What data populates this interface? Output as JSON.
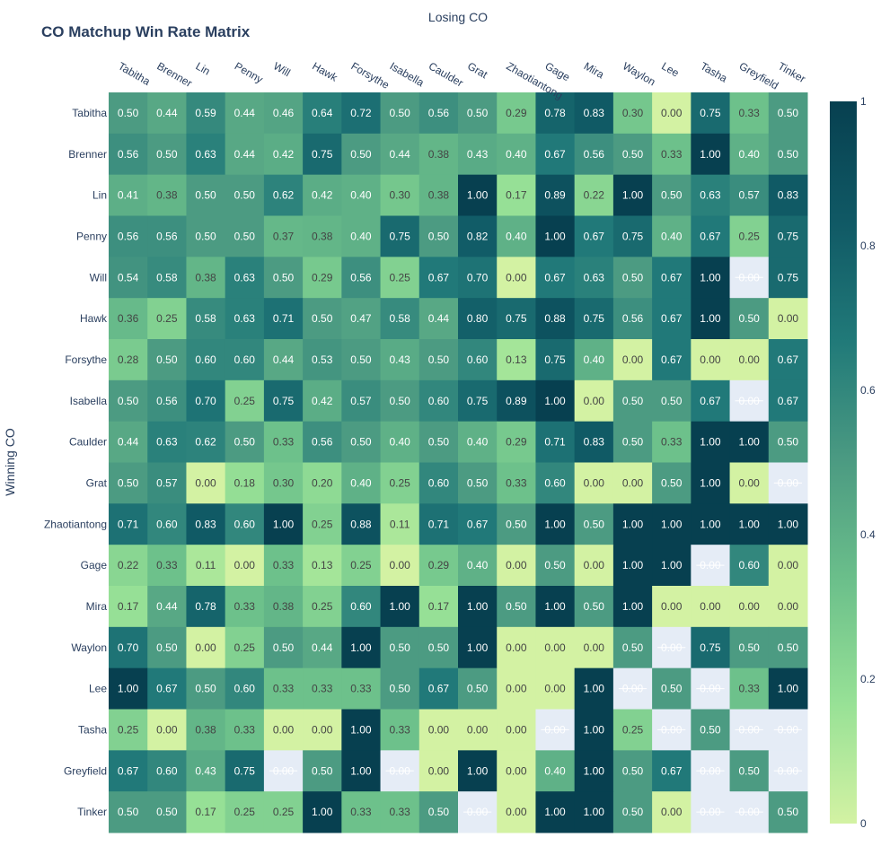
{
  "chart_data": {
    "type": "heatmap",
    "title": "CO Matchup Win Rate Matrix",
    "xlabel": "Losing CO",
    "ylabel": "Winning CO",
    "x": [
      "Tabitha",
      "Brenner",
      "Lin",
      "Penny",
      "Will",
      "Hawk",
      "Forsythe",
      "Isabella",
      "Caulder",
      "Grat",
      "Zhaotiantong",
      "Gage",
      "Mira",
      "Waylon",
      "Lee",
      "Tasha",
      "Greyfield",
      "Tinker"
    ],
    "y": [
      "Tabitha",
      "Brenner",
      "Lin",
      "Penny",
      "Will",
      "Hawk",
      "Forsythe",
      "Isabella",
      "Caulder",
      "Grat",
      "Zhaotiantong",
      "Gage",
      "Mira",
      "Waylon",
      "Lee",
      "Tasha",
      "Greyfield",
      "Tinker"
    ],
    "z": [
      [
        0.5,
        0.44,
        0.59,
        0.44,
        0.46,
        0.64,
        0.72,
        0.5,
        0.56,
        0.5,
        0.29,
        0.78,
        0.83,
        0.3,
        0.0,
        0.75,
        0.33,
        0.5
      ],
      [
        0.56,
        0.5,
        0.63,
        0.44,
        0.42,
        0.75,
        0.5,
        0.44,
        0.38,
        0.43,
        0.4,
        0.67,
        0.56,
        0.5,
        0.33,
        1.0,
        0.4,
        0.5
      ],
      [
        0.41,
        0.38,
        0.5,
        0.5,
        0.62,
        0.42,
        0.4,
        0.3,
        0.38,
        1.0,
        0.17,
        0.89,
        0.22,
        1.0,
        0.5,
        0.63,
        0.57,
        0.83
      ],
      [
        0.56,
        0.56,
        0.5,
        0.5,
        0.37,
        0.38,
        0.4,
        0.75,
        0.5,
        0.82,
        0.4,
        1.0,
        0.67,
        0.75,
        0.4,
        0.67,
        0.25,
        0.75
      ],
      [
        0.54,
        0.58,
        0.38,
        0.63,
        0.5,
        0.29,
        0.56,
        0.25,
        0.67,
        0.7,
        0.0,
        0.67,
        0.63,
        0.5,
        0.67,
        1.0,
        null,
        0.75
      ],
      [
        0.36,
        0.25,
        0.58,
        0.63,
        0.71,
        0.5,
        0.47,
        0.58,
        0.44,
        0.8,
        0.75,
        0.88,
        0.75,
        0.56,
        0.67,
        1.0,
        0.5,
        0.0
      ],
      [
        0.28,
        0.5,
        0.6,
        0.6,
        0.44,
        0.53,
        0.5,
        0.43,
        0.5,
        0.6,
        0.13,
        0.75,
        0.4,
        0.0,
        0.67,
        0.0,
        0.0,
        0.67
      ],
      [
        0.5,
        0.56,
        0.7,
        0.25,
        0.75,
        0.42,
        0.57,
        0.5,
        0.6,
        0.75,
        0.89,
        1.0,
        0.0,
        0.5,
        0.5,
        0.67,
        null,
        0.67
      ],
      [
        0.44,
        0.63,
        0.62,
        0.5,
        0.33,
        0.56,
        0.5,
        0.4,
        0.5,
        0.4,
        0.29,
        0.71,
        0.83,
        0.5,
        0.33,
        1.0,
        1.0,
        0.5
      ],
      [
        0.5,
        0.57,
        0.0,
        0.18,
        0.3,
        0.2,
        0.4,
        0.25,
        0.6,
        0.5,
        0.33,
        0.6,
        0.0,
        0.0,
        0.5,
        1.0,
        0.0,
        null
      ],
      [
        0.71,
        0.6,
        0.83,
        0.6,
        1.0,
        0.25,
        0.88,
        0.11,
        0.71,
        0.67,
        0.5,
        1.0,
        0.5,
        1.0,
        1.0,
        1.0,
        1.0,
        1.0
      ],
      [
        0.22,
        0.33,
        0.11,
        0.0,
        0.33,
        0.13,
        0.25,
        0.0,
        0.29,
        0.4,
        0.0,
        0.5,
        0.0,
        1.0,
        1.0,
        null,
        0.6,
        0.0
      ],
      [
        0.17,
        0.44,
        0.78,
        0.33,
        0.38,
        0.25,
        0.6,
        1.0,
        0.17,
        1.0,
        0.5,
        1.0,
        0.5,
        1.0,
        0.0,
        0.0,
        0.0,
        0.0
      ],
      [
        0.7,
        0.5,
        0.0,
        0.25,
        0.5,
        0.44,
        1.0,
        0.5,
        0.5,
        1.0,
        0.0,
        0.0,
        0.0,
        0.5,
        null,
        0.75,
        0.5,
        0.5
      ],
      [
        1.0,
        0.67,
        0.5,
        0.6,
        0.33,
        0.33,
        0.33,
        0.5,
        0.67,
        0.5,
        0.0,
        0.0,
        1.0,
        null,
        0.5,
        null,
        0.33,
        1.0
      ],
      [
        0.25,
        0.0,
        0.38,
        0.33,
        0.0,
        0.0,
        1.0,
        0.33,
        0.0,
        0.0,
        0.0,
        null,
        1.0,
        0.25,
        null,
        0.5,
        null,
        null
      ],
      [
        0.67,
        0.6,
        0.43,
        0.75,
        null,
        0.5,
        1.0,
        null,
        0.0,
        1.0,
        0.0,
        0.4,
        1.0,
        0.5,
        0.67,
        null,
        0.5,
        null
      ],
      [
        0.5,
        0.5,
        0.17,
        0.25,
        0.25,
        1.0,
        0.33,
        0.33,
        0.5,
        null,
        0.0,
        1.0,
        1.0,
        0.5,
        0.0,
        null,
        null,
        0.5
      ]
    ],
    "missing_label": "0.00",
    "zmin": 0,
    "zmax": 1,
    "colorscale": [
      "#d3f2a3",
      "#97e196",
      "#6cc08b",
      "#4c9b82",
      "#217a79",
      "#105965",
      "#074050"
    ],
    "missing_color": "#e5ecf6",
    "colorbar_ticks": [
      "0",
      "0.2",
      "0.4",
      "0.6",
      "0.8",
      "1"
    ],
    "colorbar_tick_values": [
      0,
      0.2,
      0.4,
      0.6,
      0.8,
      1
    ]
  }
}
